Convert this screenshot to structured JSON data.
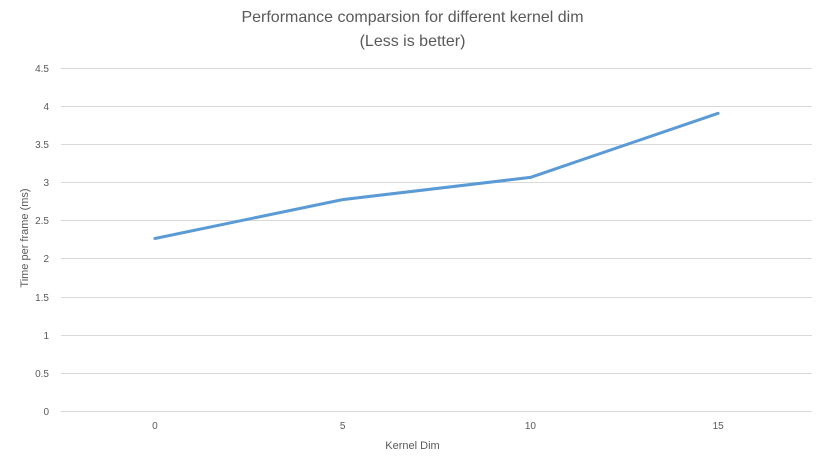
{
  "chart_data": {
    "type": "line",
    "title": "Performance comparsion for different kernel dim",
    "subtitle": "(Less is better)",
    "xlabel": "Kernel Dim",
    "ylabel": "Time per frame (ms)",
    "categories": [
      "0",
      "5",
      "10",
      "15"
    ],
    "y_ticks": [
      "0",
      "0.5",
      "1",
      "1.5",
      "2",
      "2.5",
      "3",
      "3.5",
      "4",
      "4.5"
    ],
    "ylim": [
      0,
      4.5
    ],
    "grid": true,
    "legend": "none",
    "series": [
      {
        "values": [
          2.26,
          2.77,
          3.06,
          3.9
        ],
        "color": "#5B9BD5"
      }
    ]
  },
  "colors": {
    "gridline": "#d9d9d9",
    "text": "#595959"
  }
}
